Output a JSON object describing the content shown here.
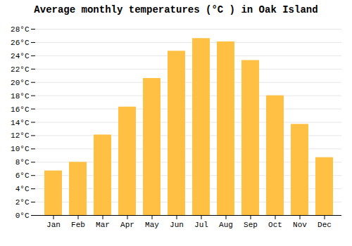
{
  "chart_data": {
    "type": "bar",
    "title": "Average monthly temperatures (°C ) in Oak Island",
    "categories": [
      "Jan",
      "Feb",
      "Mar",
      "Apr",
      "May",
      "Jun",
      "Jul",
      "Aug",
      "Sep",
      "Oct",
      "Nov",
      "Dec"
    ],
    "values": [
      6.7,
      8.0,
      12.1,
      16.3,
      20.6,
      24.7,
      26.6,
      26.1,
      23.3,
      18.0,
      13.7,
      8.7
    ],
    "color": "#FFC043",
    "ylim": [
      0,
      28
    ],
    "yticks": [
      {
        "value": 0,
        "label": "0°C"
      },
      {
        "value": 2,
        "label": "2°C"
      },
      {
        "value": 4,
        "label": "4°C"
      },
      {
        "value": 6,
        "label": "6°C"
      },
      {
        "value": 8,
        "label": "8°C"
      },
      {
        "value": 10,
        "label": "10°C"
      },
      {
        "value": 12,
        "label": "12°C"
      },
      {
        "value": 14,
        "label": "14°C"
      },
      {
        "value": 16,
        "label": "16°C"
      },
      {
        "value": 18,
        "label": "18°C"
      },
      {
        "value": 20,
        "label": "20°C"
      },
      {
        "value": 22,
        "label": "22°C"
      },
      {
        "value": 24,
        "label": "24°C"
      },
      {
        "value": 26,
        "label": "26°C"
      },
      {
        "value": 28,
        "label": "28°C"
      }
    ],
    "grid": true
  }
}
